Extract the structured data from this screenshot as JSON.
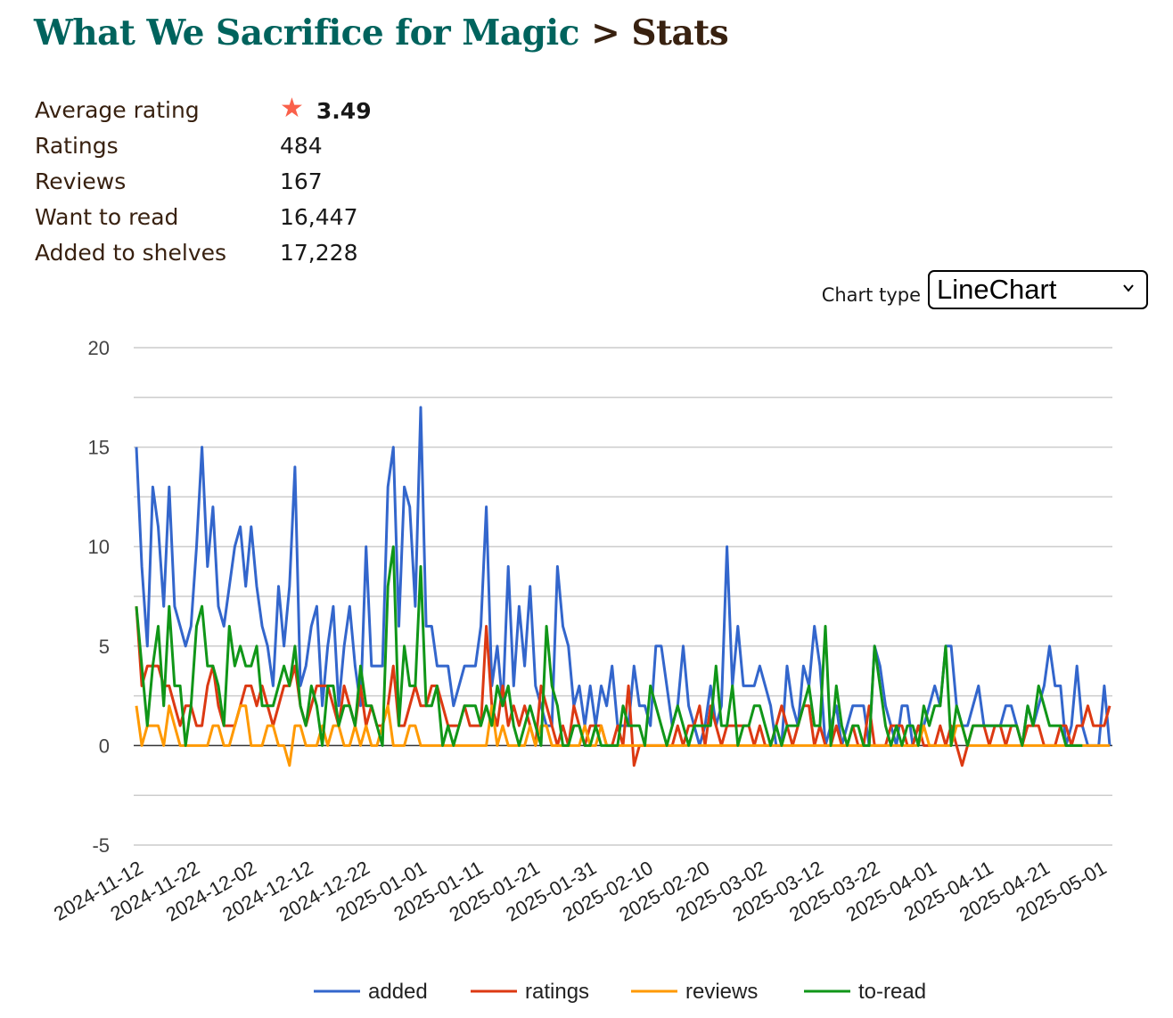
{
  "header": {
    "book_title": "What We Sacrifice for Magic",
    "separator": ">",
    "crumb": "Stats"
  },
  "stats": [
    {
      "label": "Average rating",
      "value": "3.49"
    },
    {
      "label": "Ratings",
      "value": "484"
    },
    {
      "label": "Reviews",
      "value": "167"
    },
    {
      "label": "Want to read",
      "value": "16,447"
    },
    {
      "label": "Added to shelves",
      "value": "17,228"
    }
  ],
  "star_color": "#fa604a",
  "chart_type": {
    "label": "Chart type",
    "selected": "LineChart"
  },
  "chart_data": {
    "type": "line",
    "title": "",
    "xlabel": "",
    "ylabel": "",
    "ylim": [
      -5,
      20
    ],
    "y_ticks": [
      "20",
      "15",
      "10",
      "5",
      "0",
      "-5"
    ],
    "y_tick_values": [
      20,
      15,
      10,
      5,
      0,
      -5
    ],
    "x_start": "2024-11-12",
    "x_end": "2025-05-01",
    "x_tick_labels": [
      "2024-11-12",
      "2024-11-22",
      "2024-12-02",
      "2024-12-12",
      "2024-12-22",
      "2025-01-01",
      "2025-01-11",
      "2025-01-21",
      "2025-01-31",
      "2025-02-10",
      "2025-02-20",
      "2025-03-02",
      "2025-03-12",
      "2025-03-22",
      "2025-04-01",
      "2025-04-11",
      "2025-04-21",
      "2025-05-01"
    ],
    "grid": true,
    "legend_position": "bottom",
    "series": [
      {
        "name": "added",
        "color": "#3366cc",
        "values": [
          15,
          9,
          5,
          13,
          11,
          7,
          13,
          7,
          6,
          5,
          6,
          10,
          15,
          9,
          12,
          7,
          6,
          8,
          10,
          11,
          8,
          11,
          8,
          6,
          5,
          3,
          8,
          5,
          8,
          14,
          3,
          4,
          6,
          7,
          2,
          5,
          7,
          2,
          5,
          7,
          4,
          2,
          10,
          4,
          4,
          4,
          13,
          15,
          6,
          13,
          12,
          7,
          17,
          6,
          6,
          4,
          4,
          4,
          2,
          3,
          4,
          4,
          4,
          6,
          12,
          3,
          5,
          2,
          9,
          3,
          7,
          4,
          8,
          3,
          2,
          1,
          1,
          9,
          6,
          5,
          2,
          3,
          1,
          3,
          1,
          3,
          2,
          4,
          1,
          1,
          1,
          4,
          2,
          2,
          1,
          5,
          5,
          3,
          1,
          2,
          5,
          2,
          1,
          0,
          1,
          3,
          1,
          2,
          10,
          3,
          6,
          3,
          3,
          3,
          4,
          3,
          2,
          0,
          0,
          4,
          2,
          1,
          4,
          3,
          6,
          4,
          0,
          1,
          2,
          0,
          1,
          2,
          2,
          2,
          0,
          5,
          4,
          2,
          1,
          0,
          2,
          2,
          0,
          1,
          1,
          2,
          3,
          2,
          5,
          5,
          2,
          1,
          1,
          2,
          3,
          1,
          1,
          1,
          1,
          2,
          2,
          1,
          0,
          2,
          1,
          2,
          3,
          5,
          3,
          3,
          0,
          1,
          4,
          1,
          0,
          0,
          0,
          3,
          0
        ]
      },
      {
        "name": "ratings",
        "color": "#dc3912",
        "values": [
          7,
          3,
          4,
          4,
          4,
          3,
          3,
          2,
          1,
          2,
          2,
          1,
          1,
          3,
          4,
          2,
          1,
          1,
          1,
          2,
          3,
          3,
          2,
          3,
          2,
          1,
          2,
          3,
          3,
          4,
          2,
          1,
          2,
          3,
          3,
          3,
          2,
          1,
          3,
          2,
          1,
          3,
          1,
          2,
          1,
          1,
          2,
          4,
          1,
          1,
          2,
          3,
          2,
          2,
          3,
          3,
          2,
          1,
          1,
          1,
          2,
          1,
          1,
          1,
          6,
          2,
          1,
          3,
          1,
          2,
          1,
          2,
          1,
          0,
          3,
          2,
          1,
          0,
          1,
          0,
          2,
          1,
          0,
          1,
          1,
          1,
          0,
          0,
          1,
          0,
          3,
          -1,
          0,
          0,
          0,
          0,
          0,
          0,
          0,
          1,
          0,
          1,
          1,
          2,
          0,
          2,
          1,
          0,
          1,
          1,
          1,
          1,
          1,
          0,
          1,
          0,
          0,
          1,
          2,
          1,
          0,
          1,
          2,
          2,
          0,
          1,
          0,
          0,
          1,
          0,
          0,
          1,
          0,
          0,
          2,
          0,
          0,
          0,
          1,
          1,
          1,
          0,
          0,
          1,
          0,
          0,
          0,
          1,
          0,
          1,
          0,
          -1,
          0,
          1,
          1,
          1,
          0,
          1,
          1,
          0,
          1,
          1,
          0,
          1,
          1,
          1,
          0,
          0,
          0,
          1,
          1,
          0,
          1,
          1,
          2,
          1,
          1,
          1,
          2
        ]
      },
      {
        "name": "reviews",
        "color": "#ff9900",
        "values": [
          2,
          0,
          1,
          1,
          1,
          0,
          2,
          1,
          0,
          0,
          0,
          0,
          0,
          0,
          1,
          1,
          0,
          0,
          1,
          2,
          2,
          0,
          0,
          0,
          1,
          1,
          0,
          0,
          -1,
          1,
          1,
          0,
          0,
          0,
          1,
          0,
          1,
          1,
          0,
          0,
          1,
          0,
          1,
          0,
          0,
          1,
          2,
          0,
          0,
          0,
          1,
          1,
          0,
          0,
          0,
          0,
          0,
          0,
          0,
          0,
          0,
          0,
          0,
          0,
          0,
          2,
          0,
          1,
          0,
          0,
          0,
          0,
          1,
          0,
          1,
          1,
          0,
          0,
          0,
          0,
          0,
          0,
          1,
          0,
          0,
          1,
          0,
          0,
          0,
          0,
          0,
          0,
          0,
          0,
          0,
          0,
          0,
          0,
          0,
          0,
          0,
          0,
          0,
          0,
          0,
          0,
          0,
          0,
          0,
          0,
          0,
          0,
          0,
          0,
          0,
          0,
          0,
          0,
          0,
          0,
          0,
          0,
          0,
          0,
          0,
          0,
          0,
          0,
          0,
          0,
          0,
          0,
          0,
          0,
          0,
          0,
          0,
          0,
          0,
          0,
          0,
          0,
          0,
          0,
          1,
          0,
          0,
          0,
          0,
          0,
          1,
          1,
          0,
          0,
          0,
          0,
          0,
          0,
          0,
          0,
          0,
          0,
          0,
          0,
          0,
          0,
          0,
          0,
          0,
          0,
          0,
          0,
          0,
          0,
          0,
          0,
          0,
          0,
          0
        ]
      },
      {
        "name": "to-read",
        "color": "#109618",
        "values": [
          7,
          4,
          1,
          4,
          6,
          2,
          7,
          3,
          3,
          0,
          2,
          6,
          7,
          4,
          4,
          3,
          1,
          6,
          4,
          5,
          4,
          4,
          5,
          2,
          2,
          2,
          3,
          4,
          3,
          5,
          2,
          1,
          3,
          2,
          0,
          3,
          3,
          1,
          2,
          2,
          1,
          4,
          2,
          2,
          1,
          0,
          8,
          10,
          1,
          5,
          3,
          3,
          9,
          2,
          2,
          3,
          0,
          1,
          0,
          1,
          2,
          2,
          2,
          1,
          2,
          1,
          3,
          2,
          3,
          1,
          0,
          1,
          2,
          1,
          0,
          6,
          3,
          2,
          0,
          0,
          1,
          1,
          0,
          0,
          1,
          0,
          0,
          0,
          0,
          2,
          1,
          1,
          1,
          0,
          3,
          2,
          1,
          0,
          1,
          2,
          1,
          0,
          1,
          1,
          1,
          1,
          4,
          1,
          1,
          3,
          0,
          1,
          1,
          2,
          2,
          1,
          0,
          1,
          0,
          1,
          1,
          1,
          2,
          3,
          1,
          1,
          6,
          0,
          3,
          1,
          0,
          1,
          1,
          0,
          0,
          5,
          3,
          1,
          0,
          1,
          0,
          1,
          1,
          0,
          2,
          1,
          2,
          2,
          5,
          0,
          2,
          1,
          0,
          1,
          1,
          1,
          1,
          1,
          1,
          1,
          1,
          1,
          0,
          2,
          1,
          3,
          2,
          1,
          1,
          1,
          0,
          0,
          0,
          0
        ]
      }
    ]
  }
}
